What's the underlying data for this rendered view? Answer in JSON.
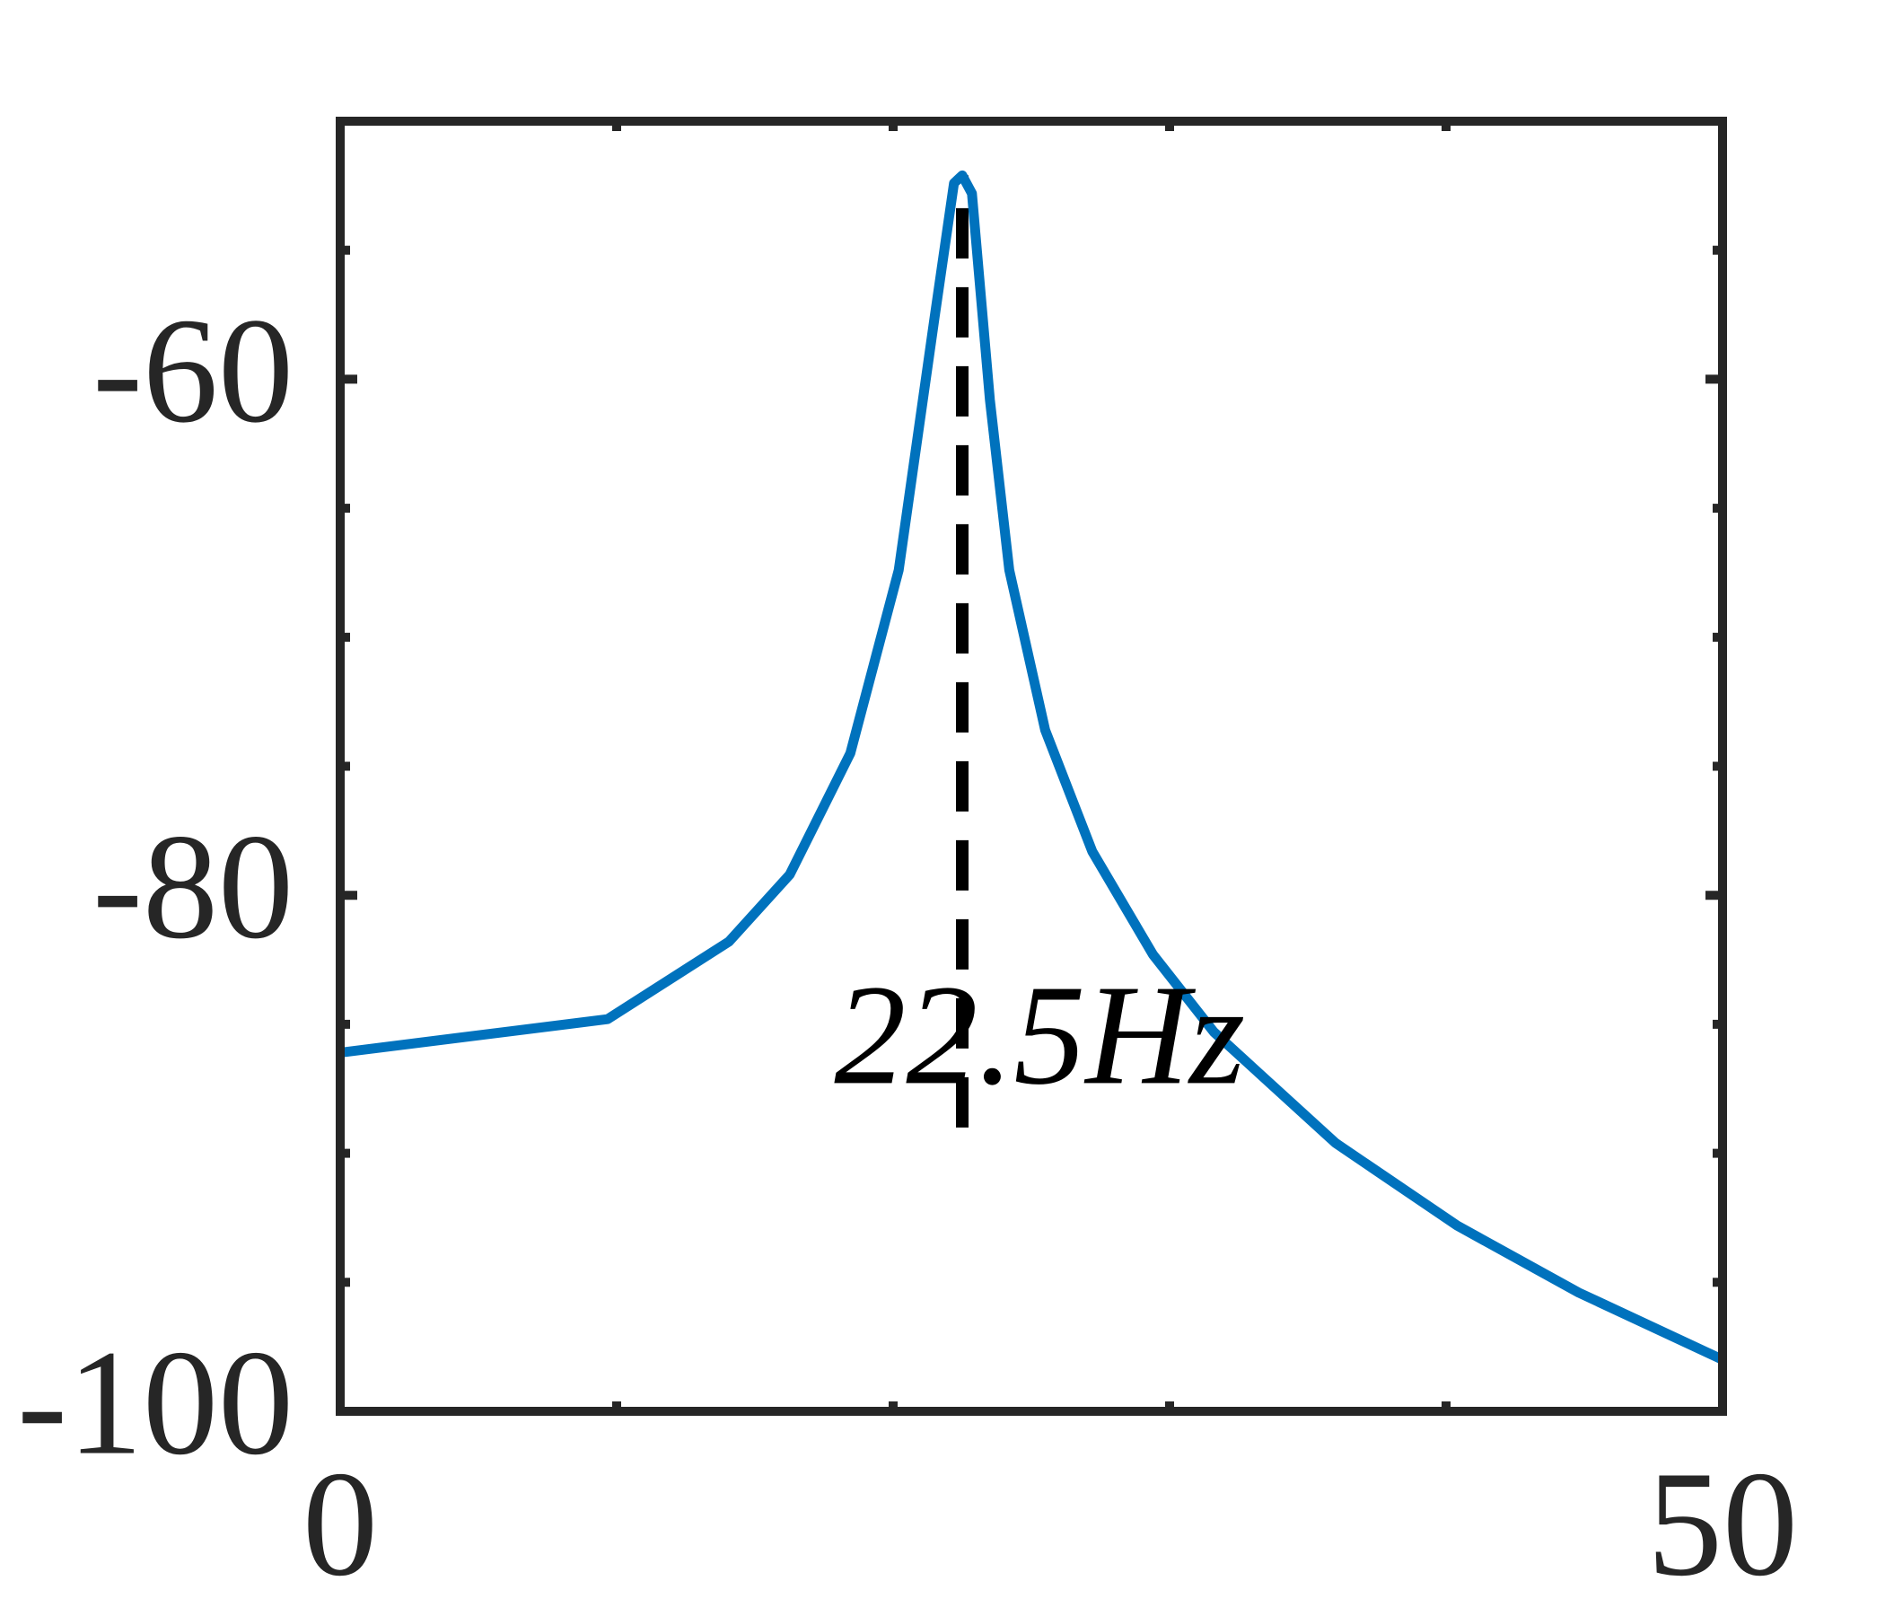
{
  "chart_data": {
    "type": "line",
    "x": [
      0,
      9.67,
      14.06,
      16.26,
      18.45,
      20.2,
      21.5,
      22.2,
      22.5,
      22.85,
      23.5,
      24.2,
      25.5,
      27.2,
      29.4,
      31.6,
      36.0,
      40.4,
      44.8,
      50
    ],
    "values": [
      -86.1,
      -84.8,
      -81.8,
      -79.2,
      -74.5,
      -67.4,
      -57.6,
      -52.4,
      -52.1,
      -52.8,
      -60.8,
      -67.4,
      -73.6,
      -78.3,
      -82.3,
      -85.3,
      -89.6,
      -92.8,
      -95.4,
      -98.0
    ],
    "color": "#0072bd",
    "xlim": [
      0,
      50
    ],
    "ylim": [
      -100,
      -50
    ],
    "xticks": [
      0,
      50
    ],
    "yticks": [
      -100,
      -80,
      -60
    ],
    "xminorticks": [
      10,
      20,
      30,
      40
    ],
    "yminorticks": [
      -95,
      -90,
      -85,
      -75,
      -70,
      -65,
      -55
    ],
    "grid": false,
    "reference_line": {
      "x": 22.5,
      "y": [
        -89,
        -52.1
      ],
      "color": "#000000"
    },
    "annotation": {
      "text": "22.5Hz",
      "x": 25.3,
      "y": -86
    }
  }
}
